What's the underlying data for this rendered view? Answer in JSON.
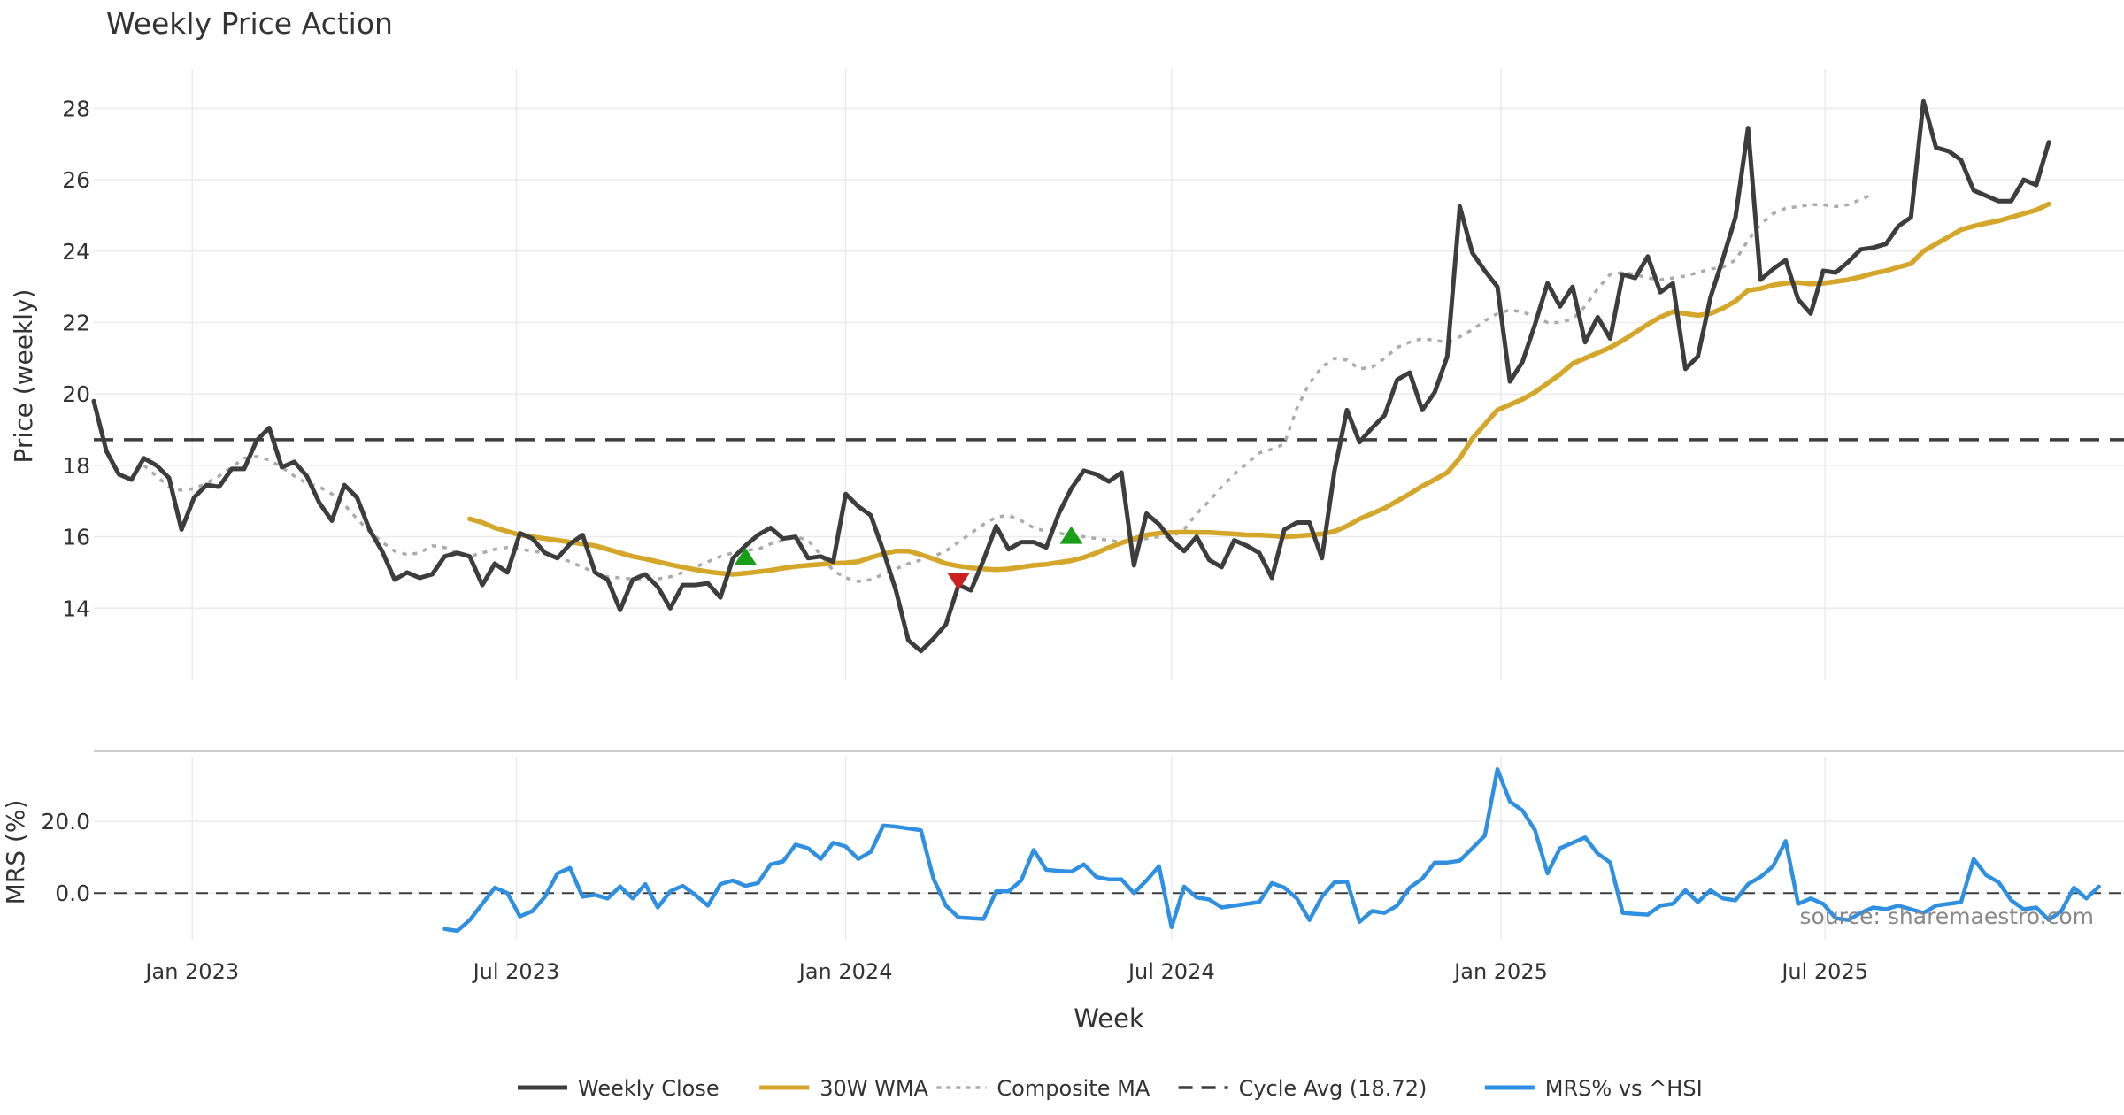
{
  "chart_data": {
    "type": "line",
    "title": "Weekly Price Action",
    "source_note": "source: sharemaestro.com",
    "x_axis": {
      "label": "Week",
      "range": [
        "2022-11-07",
        "2025-12-15"
      ],
      "ticks": [
        {
          "date": "2023-01-01",
          "label": "Jan 2023"
        },
        {
          "date": "2023-07-01",
          "label": "Jul 2023"
        },
        {
          "date": "2024-01-01",
          "label": "Jan 2024"
        },
        {
          "date": "2024-07-01",
          "label": "Jul 2024"
        },
        {
          "date": "2025-01-01",
          "label": "Jan 2025"
        },
        {
          "date": "2025-07-01",
          "label": "Jul 2025"
        }
      ]
    },
    "price_panel": {
      "ylabel": "Price (weekly)",
      "ylim": [
        12,
        29.1
      ],
      "yticks": [
        14,
        16,
        18,
        20,
        22,
        24,
        26,
        28
      ],
      "cycle_avg": 18.72,
      "weekly_close": {
        "start": "2022-11-07",
        "step_days": 7,
        "values": [
          19.8,
          18.4,
          17.75,
          17.6,
          18.2,
          18.0,
          17.65,
          16.2,
          17.1,
          17.45,
          17.4,
          17.9,
          17.9,
          18.7,
          19.05,
          17.95,
          18.1,
          17.7,
          16.95,
          16.45,
          17.45,
          17.1,
          16.2,
          15.6,
          14.8,
          15.0,
          14.85,
          14.95,
          15.45,
          15.55,
          15.45,
          14.65,
          15.25,
          15.0,
          16.1,
          15.95,
          15.55,
          15.4,
          15.8,
          16.05,
          15.0,
          14.8,
          13.95,
          14.8,
          14.95,
          14.6,
          14.0,
          14.65,
          14.65,
          14.7,
          14.3,
          15.4,
          15.75,
          16.05,
          16.25,
          15.95,
          16.0,
          15.4,
          15.45,
          15.3,
          17.2,
          16.85,
          16.6,
          15.6,
          14.5,
          13.1,
          12.8,
          13.15,
          13.55,
          14.65,
          14.5,
          15.35,
          16.3,
          15.65,
          15.85,
          15.85,
          15.7,
          16.65,
          17.35,
          17.85,
          17.75,
          17.55,
          17.8,
          15.2,
          16.65,
          16.35,
          15.9,
          15.6,
          16.0,
          15.35,
          15.15,
          15.9,
          15.75,
          15.55,
          14.85,
          16.2,
          16.4,
          16.4,
          15.4,
          17.85,
          19.55,
          18.65,
          19.05,
          19.4,
          20.4,
          20.6,
          19.55,
          20.05,
          21.05,
          25.25,
          23.95,
          23.45,
          23.0,
          20.35,
          20.9,
          21.95,
          23.1,
          22.45,
          23.0,
          21.45,
          22.15,
          21.55,
          23.35,
          23.25,
          23.85,
          22.85,
          23.1,
          20.7,
          21.05,
          22.7,
          23.8,
          24.95,
          27.45,
          23.2,
          23.5,
          23.75,
          22.65,
          22.25,
          23.45,
          23.4,
          23.7,
          24.05,
          24.1,
          24.2,
          24.7,
          24.95,
          28.2,
          26.9,
          26.8,
          26.55,
          25.7,
          25.55,
          25.4,
          25.4,
          26.0,
          25.85,
          27.05
        ]
      },
      "wma_30w": {
        "start": "2023-06-05",
        "step_days": 7,
        "values": [
          16.5,
          16.4,
          16.25,
          16.15,
          16.05,
          16.0,
          15.95,
          15.9,
          15.85,
          15.8,
          15.75,
          15.65,
          15.55,
          15.45,
          15.38,
          15.3,
          15.22,
          15.15,
          15.08,
          15.02,
          14.98,
          14.95,
          14.98,
          15.02,
          15.06,
          15.12,
          15.17,
          15.2,
          15.23,
          15.26,
          15.27,
          15.3,
          15.42,
          15.52,
          15.6,
          15.6,
          15.5,
          15.38,
          15.25,
          15.18,
          15.13,
          15.1,
          15.08,
          15.1,
          15.15,
          15.2,
          15.23,
          15.28,
          15.33,
          15.42,
          15.55,
          15.7,
          15.83,
          15.95,
          16.05,
          16.1,
          16.12,
          16.13,
          16.12,
          16.12,
          16.1,
          16.08,
          16.05,
          16.05,
          16.03,
          16.0,
          16.02,
          16.05,
          16.08,
          16.15,
          16.3,
          16.5,
          16.65,
          16.8,
          17.0,
          17.2,
          17.42,
          17.6,
          17.8,
          18.2,
          18.75,
          19.15,
          19.55,
          19.7,
          19.85,
          20.05,
          20.3,
          20.55,
          20.85,
          21.0,
          21.15,
          21.3,
          21.5,
          21.72,
          21.95,
          22.15,
          22.3,
          22.25,
          22.2,
          22.25,
          22.4,
          22.6,
          22.9,
          22.95,
          23.05,
          23.1,
          23.12,
          23.08,
          23.1,
          23.15,
          23.2,
          23.28,
          23.38,
          23.45,
          23.55,
          23.65,
          24.0,
          24.2,
          24.4,
          24.6,
          24.7,
          24.78,
          24.85,
          24.95,
          25.05,
          25.15,
          25.32
        ]
      },
      "composite_ma": {
        "start": "2022-12-05",
        "step_days": 7,
        "values": [
          18.0,
          17.7,
          17.4,
          17.3,
          17.35,
          17.5,
          17.7,
          17.95,
          18.2,
          18.25,
          18.15,
          17.95,
          17.7,
          17.5,
          17.4,
          17.2,
          16.9,
          16.5,
          16.15,
          15.85,
          15.6,
          15.5,
          15.55,
          15.75,
          15.7,
          15.55,
          15.45,
          15.55,
          15.65,
          15.7,
          15.65,
          15.6,
          15.55,
          15.45,
          15.3,
          15.15,
          15.0,
          14.88,
          14.85,
          14.82,
          14.8,
          14.82,
          14.88,
          15.0,
          15.15,
          15.3,
          15.45,
          15.55,
          15.62,
          15.65,
          15.8,
          15.9,
          16.0,
          15.9,
          15.5,
          15.05,
          14.85,
          14.75,
          14.8,
          14.95,
          15.1,
          15.25,
          15.35,
          15.45,
          15.6,
          15.85,
          16.1,
          16.35,
          16.55,
          16.6,
          16.45,
          16.25,
          16.15,
          16.1,
          16.05,
          16.0,
          15.95,
          15.9,
          15.85,
          15.9,
          15.95,
          16.0,
          16.0,
          16.2,
          16.65,
          17.0,
          17.4,
          17.75,
          18.05,
          18.35,
          18.45,
          18.6,
          19.6,
          20.3,
          20.75,
          21.0,
          20.95,
          20.7,
          20.75,
          21.0,
          21.3,
          21.45,
          21.55,
          21.5,
          21.45,
          21.6,
          21.8,
          22.05,
          22.25,
          22.35,
          22.3,
          22.15,
          22.0,
          22.0,
          22.1,
          22.45,
          22.95,
          23.35,
          23.4,
          23.35,
          23.25,
          23.2,
          23.25,
          23.3,
          23.4,
          23.5,
          23.55,
          23.75,
          24.3,
          24.75,
          25.05,
          25.2,
          25.25,
          25.3,
          25.3,
          25.25,
          25.3,
          25.45,
          25.6
        ]
      },
      "signals": [
        {
          "type": "buy",
          "date": "2023-11-06",
          "price": 15.45
        },
        {
          "type": "sell",
          "date": "2024-03-04",
          "price": 14.75
        },
        {
          "type": "buy",
          "date": "2024-05-06",
          "price": 16.05
        }
      ]
    },
    "mrs_panel": {
      "ylabel": "MRS (%)",
      "ylim": [
        -13,
        38
      ],
      "yticks": [
        {
          "value": 0,
          "label": "0.0"
        },
        {
          "value": 20,
          "label": "20.0"
        }
      ],
      "zero_line": 0,
      "mrs_vs_hsi": {
        "start": "2023-05-22",
        "step_days": 7,
        "values": [
          -10,
          -10.5,
          -7.5,
          -3,
          1.5,
          0,
          -6.5,
          -5,
          -1,
          5.5,
          7,
          -1,
          -0.5,
          -1.5,
          1.8,
          -1.5,
          2.5,
          -4,
          0.5,
          2,
          -0.5,
          -3.5,
          2.5,
          3.5,
          2,
          2.8,
          8,
          8.8,
          13.5,
          12.5,
          9.5,
          14,
          13,
          9.5,
          11.5,
          18.8,
          18.5,
          18,
          17.5,
          4,
          -3.5,
          -6.8,
          -7,
          -7.2,
          0.5,
          0.5,
          3.5,
          12,
          6.5,
          6.2,
          6,
          8,
          4.5,
          3.8,
          3.8,
          0,
          3.5,
          7.5,
          -9.5,
          1.8,
          -1.2,
          -1.8,
          -4,
          -3.5,
          -3,
          -2.5,
          2.8,
          1.5,
          -1.5,
          -7.5,
          -1,
          3,
          3.2,
          -8,
          -5,
          -5.5,
          -3.5,
          1.5,
          4,
          8.5,
          8.5,
          9,
          12.5,
          16,
          34.5,
          25.5,
          23,
          17.5,
          5.5,
          12.5,
          14,
          15.5,
          11,
          8.5,
          -5.5,
          -5.8,
          -6,
          -3.5,
          -3,
          0.8,
          -2.5,
          0.8,
          -1.5,
          -2,
          2.5,
          4.5,
          7.5,
          14.5,
          -3,
          -1.5,
          -3,
          -7,
          -7.5,
          -5.5,
          -4,
          -4.5,
          -3.5,
          -4.5,
          -5.5,
          -3.5,
          -3,
          -2.5,
          9.5,
          5,
          3,
          -2,
          -4.5,
          -4,
          -7.5,
          -5,
          1.5,
          -1.5,
          1.8
        ]
      }
    },
    "legend": {
      "placement": "bottom-center",
      "items": [
        {
          "label": "Weekly Close",
          "color": "#3d3d3d",
          "style": "solid"
        },
        {
          "label": "30W WMA",
          "color": "#d4a62a",
          "style": "solid"
        },
        {
          "label": "Composite MA",
          "color": "#ababab",
          "style": "dotted"
        },
        {
          "label": "Cycle Avg (18.72)",
          "color": "#3d3d3d",
          "style": "dashed"
        },
        {
          "label": "MRS% vs ^HSI",
          "color": "#2f8fe0",
          "style": "solid"
        }
      ]
    },
    "colors": {
      "close": "#3d3d3d",
      "wma": "#d4a62a",
      "composite": "#ababab",
      "cycle": "#3d3d3d",
      "mrs": "#2f8fe0",
      "buy": "#1a9e1a",
      "sell": "#cc1f1f",
      "grid": "#ebebeb",
      "text": "#333333"
    }
  }
}
